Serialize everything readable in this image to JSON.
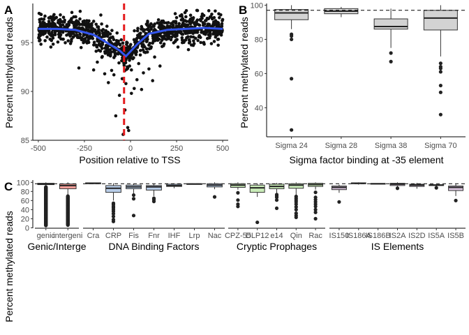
{
  "colors": {
    "smooth": "#3355ee",
    "tss_line": "#e41a1c",
    "box_gray": "#d3d3d3",
    "genic": "#f9c0b8",
    "intergenic": "#f8a09a",
    "dna": "#b8cde8",
    "prophage": "#c9ebb8",
    "is": "#dcc6e0"
  },
  "chart_data": [
    {
      "type": "scatter",
      "panel_label": "A",
      "xlabel": "Position relative to TSS",
      "ylabel": "Percent methylated reads",
      "xlim": [
        -530,
        530
      ],
      "ylim": [
        85,
        99
      ],
      "xticks": [
        -500,
        -250,
        0,
        250,
        500
      ],
      "yticks": [
        85,
        90,
        95
      ],
      "tss_line_x": -35,
      "smooth": [
        {
          "x": -500,
          "y": 96.4
        },
        {
          "x": -400,
          "y": 96.4
        },
        {
          "x": -300,
          "y": 96.3
        },
        {
          "x": -200,
          "y": 95.8
        },
        {
          "x": -120,
          "y": 94.9
        },
        {
          "x": -60,
          "y": 94.2
        },
        {
          "x": -25,
          "y": 93.6
        },
        {
          "x": 0,
          "y": 94.1
        },
        {
          "x": 40,
          "y": 94.9
        },
        {
          "x": 100,
          "y": 95.9
        },
        {
          "x": 200,
          "y": 96.3
        },
        {
          "x": 300,
          "y": 96.4
        },
        {
          "x": 400,
          "y": 96.5
        },
        {
          "x": 500,
          "y": 96.4
        }
      ],
      "outliers": [
        {
          "x": -40,
          "y": 85.6
        },
        {
          "x": -10,
          "y": 86.0
        },
        {
          "x": -15,
          "y": 86.3
        },
        {
          "x": -80,
          "y": 87.5
        },
        {
          "x": -30,
          "y": 88.1
        },
        {
          "x": -60,
          "y": 89.6
        },
        {
          "x": 5,
          "y": 89.8
        },
        {
          "x": 20,
          "y": 90.3
        },
        {
          "x": -25,
          "y": 90.8
        },
        {
          "x": 60,
          "y": 90.2
        },
        {
          "x": -120,
          "y": 90.9
        },
        {
          "x": 35,
          "y": 91.2
        },
        {
          "x": -45,
          "y": 91.3
        },
        {
          "x": -200,
          "y": 92.2
        },
        {
          "x": 100,
          "y": 92.3
        },
        {
          "x": -280,
          "y": 92.4
        },
        {
          "x": 160,
          "y": 92.6
        },
        {
          "x": -140,
          "y": 91.8
        },
        {
          "x": -5,
          "y": 92.6
        },
        {
          "x": 70,
          "y": 91.9
        },
        {
          "x": 5,
          "y": 92.2
        },
        {
          "x": -90,
          "y": 91.7
        },
        {
          "x": 120,
          "y": 91.1
        },
        {
          "x": -180,
          "y": 93.0
        }
      ]
    },
    {
      "type": "box",
      "panel_label": "B",
      "xlabel": "Sigma factor binding at -35 element",
      "ylabel": "Percent methylated reads",
      "ylim": [
        23,
        101
      ],
      "yticks": [
        40,
        60,
        80,
        100
      ],
      "reference_line_y": 97,
      "boxes": [
        {
          "label": "Sigma 24",
          "low": 86,
          "q1": 91.5,
          "median": 95.5,
          "q3": 97.5,
          "high": 100,
          "outliers": [
            83,
            82,
            80,
            57,
            27
          ]
        },
        {
          "label": "Sigma 28",
          "low": 93,
          "q1": 95,
          "median": 96.5,
          "q3": 98,
          "high": 99,
          "outliers": []
        },
        {
          "label": "Sigma 38",
          "low": 75,
          "q1": 86,
          "median": 87.5,
          "q3": 92,
          "high": 98,
          "outliers": [
            72,
            67
          ]
        },
        {
          "label": "Sigma 70",
          "low": 70,
          "q1": 85.5,
          "median": 92.5,
          "q3": 97,
          "high": 100,
          "outliers": [
            66,
            64,
            63,
            61,
            53,
            49,
            36
          ]
        }
      ]
    },
    {
      "type": "box",
      "panel_label": "C",
      "ylabel": "Percent methylated reads",
      "ylim": [
        -4,
        102
      ],
      "yticks": [
        0,
        20,
        40,
        60,
        80,
        100
      ],
      "reference_line_y": 97,
      "groups": [
        {
          "name": "Genic/Intergenic",
          "facet_label": "Genic/Interge",
          "color_key": "genic",
          "boxes": [
            {
              "label": "genic",
              "low": 91,
              "q1": 95,
              "median": 96.5,
              "q3": 98,
              "high": 100,
              "outlier_range": [
                5,
                90
              ],
              "color_key": "genic"
            },
            {
              "label": "intergeni",
              "low": 72,
              "q1": 86,
              "median": 93,
              "q3": 96.5,
              "high": 100,
              "outlier_range": [
                6,
                70
              ],
              "color_key": "intergenic"
            }
          ]
        },
        {
          "name": "DNA Binding Factors",
          "facet_label": "DNA Binding Factors",
          "color_key": "dna",
          "boxes": [
            {
              "label": "Cra",
              "low": 96,
              "q1": 97,
              "median": 98,
              "q3": 99,
              "high": 99.5,
              "outliers": []
            },
            {
              "label": "CRP",
              "low": 60,
              "q1": 78,
              "median": 87,
              "q3": 93,
              "high": 98,
              "outliers": [
                54,
                51,
                47,
                44,
                40,
                36,
                31,
                25,
                18,
                14
              ]
            },
            {
              "label": "Fis",
              "low": 76,
              "q1": 86,
              "median": 90,
              "q3": 94,
              "high": 97,
              "outliers": [
                72,
                64,
                27
              ]
            },
            {
              "label": "Fnr",
              "low": 70,
              "q1": 83,
              "median": 90,
              "q3": 93,
              "high": 97,
              "outliers": [
                65,
                62,
                58
              ]
            },
            {
              "label": "IHF",
              "low": 87,
              "q1": 91,
              "median": 93,
              "q3": 96,
              "high": 98,
              "outliers": []
            },
            {
              "label": "Lrp",
              "low": 95,
              "q1": 96,
              "median": 96.5,
              "q3": 97,
              "high": 97.5,
              "outliers": []
            },
            {
              "label": "Nac",
              "low": 85,
              "q1": 90,
              "median": 94,
              "q3": 97,
              "high": 100,
              "outliers": [
                68
              ]
            }
          ]
        },
        {
          "name": "Cryptic Prophages",
          "facet_label": "Cryptic Prophages",
          "color_key": "prophage",
          "boxes": [
            {
              "label": "CPZ-55",
              "low": 84,
              "q1": 89,
              "median": 94,
              "q3": 97,
              "high": 100,
              "outliers": [
                77,
                61,
                52,
                47
              ]
            },
            {
              "label": "DLP12",
              "low": 68,
              "q1": 78,
              "median": 88,
              "q3": 94,
              "high": 98,
              "outliers": [
                12
              ]
            },
            {
              "label": "e14",
              "low": 76,
              "q1": 86,
              "median": 91,
              "q3": 96,
              "high": 99,
              "outliers": [
                73,
                70,
                67,
                61,
                43
              ]
            },
            {
              "label": "Qin",
              "low": 72,
              "q1": 87,
              "median": 94,
              "q3": 97,
              "high": 100,
              "outliers": [
                69,
                65,
                61,
                57,
                52,
                46,
                40,
                32,
                27,
                23
              ]
            },
            {
              "label": "Rac",
              "low": 84,
              "q1": 91,
              "median": 95,
              "q3": 98,
              "high": 100,
              "outliers": [
                78,
                67,
                62,
                57,
                52,
                47,
                40,
                34,
                20
              ]
            }
          ]
        },
        {
          "name": "IS Elements",
          "facet_label": "IS Elements",
          "color_key": "is",
          "boxes": [
            {
              "label": "IS150",
              "low": 77,
              "q1": 84,
              "median": 89,
              "q3": 92,
              "high": 95,
              "outliers": [
                57
              ]
            },
            {
              "label": "IS186A",
              "low": 95,
              "q1": 97,
              "median": 98,
              "q3": 99,
              "high": 100,
              "outliers": []
            },
            {
              "label": "IS186B",
              "low": 96,
              "q1": 96.5,
              "median": 97,
              "q3": 97.5,
              "high": 98,
              "outliers": []
            },
            {
              "label": "IS2A",
              "low": 90,
              "q1": 93,
              "median": 96,
              "q3": 98,
              "high": 100,
              "outliers": [
                87
              ]
            },
            {
              "label": "IS2D",
              "low": 86,
              "q1": 91,
              "median": 94,
              "q3": 96,
              "high": 99,
              "outliers": []
            },
            {
              "label": "IS5A",
              "low": 91,
              "q1": 93,
              "median": 94,
              "q3": 95,
              "high": 96,
              "outliers": [
                88
              ]
            },
            {
              "label": "IS5B",
              "low": 70,
              "q1": 82,
              "median": 89,
              "q3": 92,
              "high": 96,
              "outliers": [
                60
              ]
            }
          ]
        }
      ]
    }
  ]
}
